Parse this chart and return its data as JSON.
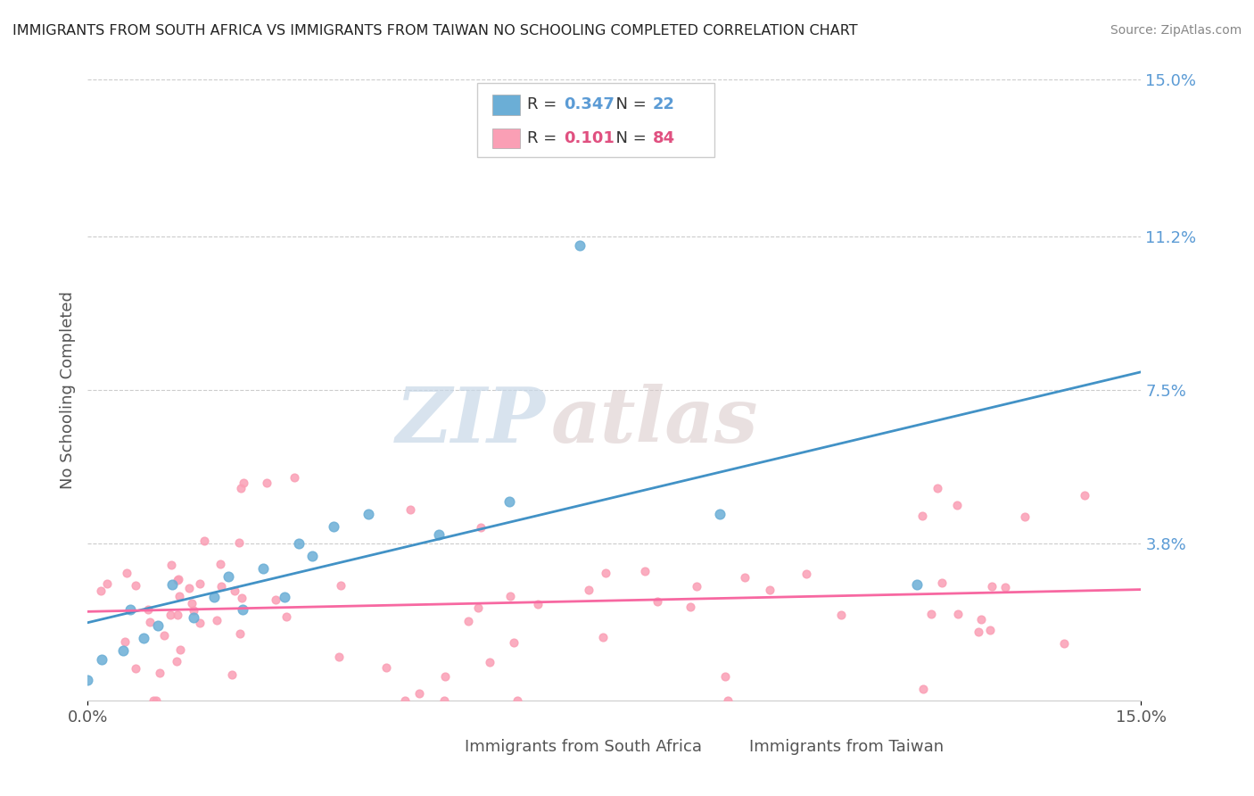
{
  "title": "IMMIGRANTS FROM SOUTH AFRICA VS IMMIGRANTS FROM TAIWAN NO SCHOOLING COMPLETED CORRELATION CHART",
  "source": "Source: ZipAtlas.com",
  "ylabel": "No Schooling Completed",
  "xlim": [
    0.0,
    0.15
  ],
  "ylim": [
    0.0,
    0.15
  ],
  "x_tick_labels": [
    "0.0%",
    "15.0%"
  ],
  "y_tick_labels_right": [
    "15.0%",
    "11.2%",
    "7.5%",
    "3.8%"
  ],
  "y_tick_values_right": [
    0.15,
    0.112,
    0.075,
    0.038
  ],
  "color_blue": "#6baed6",
  "color_pink": "#fa9fb5",
  "line_color_blue": "#4292c6",
  "line_color_pink": "#f768a1",
  "legend_R1": "0.347",
  "legend_N1": "22",
  "legend_R2": "0.101",
  "legend_N2": "84",
  "legend_label1": "Immigrants from South Africa",
  "legend_label2": "Immigrants from Taiwan",
  "watermark_zip": "ZIP",
  "watermark_atlas": "atlas",
  "blue_points_x": [
    0.0,
    0.002,
    0.005,
    0.006,
    0.008,
    0.01,
    0.012,
    0.015,
    0.018,
    0.02,
    0.022,
    0.025,
    0.028,
    0.03,
    0.032,
    0.035,
    0.04,
    0.05,
    0.06,
    0.07,
    0.09,
    0.118
  ],
  "blue_points_y": [
    0.005,
    0.01,
    0.012,
    0.022,
    0.015,
    0.018,
    0.028,
    0.02,
    0.025,
    0.03,
    0.022,
    0.032,
    0.025,
    0.038,
    0.035,
    0.042,
    0.045,
    0.04,
    0.048,
    0.11,
    0.045,
    0.028
  ],
  "pink_slope": 0.101,
  "pink_intercept": 0.012,
  "grid_color": "#cccccc",
  "spine_color": "#cccccc",
  "title_color": "#222222",
  "source_color": "#888888",
  "axis_label_color": "#555555",
  "right_tick_color": "#5b9bd5",
  "legend_value_color_blue": "#5b9bd5",
  "legend_value_color_pink": "#e05080"
}
